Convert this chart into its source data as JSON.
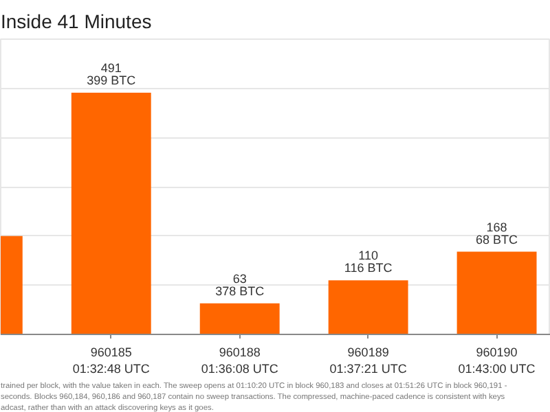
{
  "chart_data": {
    "type": "bar",
    "title": "Inside 41 Minutes",
    "categories": [
      null,
      "960185\n01:32:48 UTC",
      "960188\n01:36:08 UTC",
      "960189\n01:37:21 UTC",
      "960190\n01:43:00 UTC"
    ],
    "values": [
      200,
      491,
      63,
      110,
      168
    ],
    "value_labels": [
      null,
      "491",
      "63",
      "110",
      "168"
    ],
    "color": "#ff6600",
    "ylim": [
      0,
      600
    ],
    "yticks": [
      {
        "value": 0,
        "label": null
      },
      {
        "value": 100,
        "label": null
      },
      {
        "value": 200,
        "label": null
      },
      {
        "value": 300,
        "label": null
      },
      {
        "value": 400,
        "label": null
      },
      {
        "value": 500,
        "label": null
      },
      {
        "value": 600,
        "label": null
      }
    ],
    "tick_labels": "x",
    "grid": "y",
    "annotations": [
      {
        "text": "399 BTC",
        "x": "960185\n01:32:48 UTC",
        "y": 491
      },
      {
        "text": "378 BTC",
        "x": "960188\n01:36:08 UTC",
        "y": 63
      },
      {
        "text": "116 BTC",
        "x": "960189\n01:37:21 UTC",
        "y": 110
      },
      {
        "text": "68 BTC",
        "x": "960190\n01:43:00 UTC",
        "y": 168
      },
      "trained per block, with the value taken in each. The sweep opens at 01:10:20 UTC in block 960,183 and closes at 01:51:26 UTC in block 960,191 -",
      "seconds. Blocks 960,184, 960,186 and 960,187 contain no sweep transactions. The compressed, machine-paced cadence is consistent with keys",
      "adcast, rather than with an attack discovering keys as it goes."
    ]
  }
}
